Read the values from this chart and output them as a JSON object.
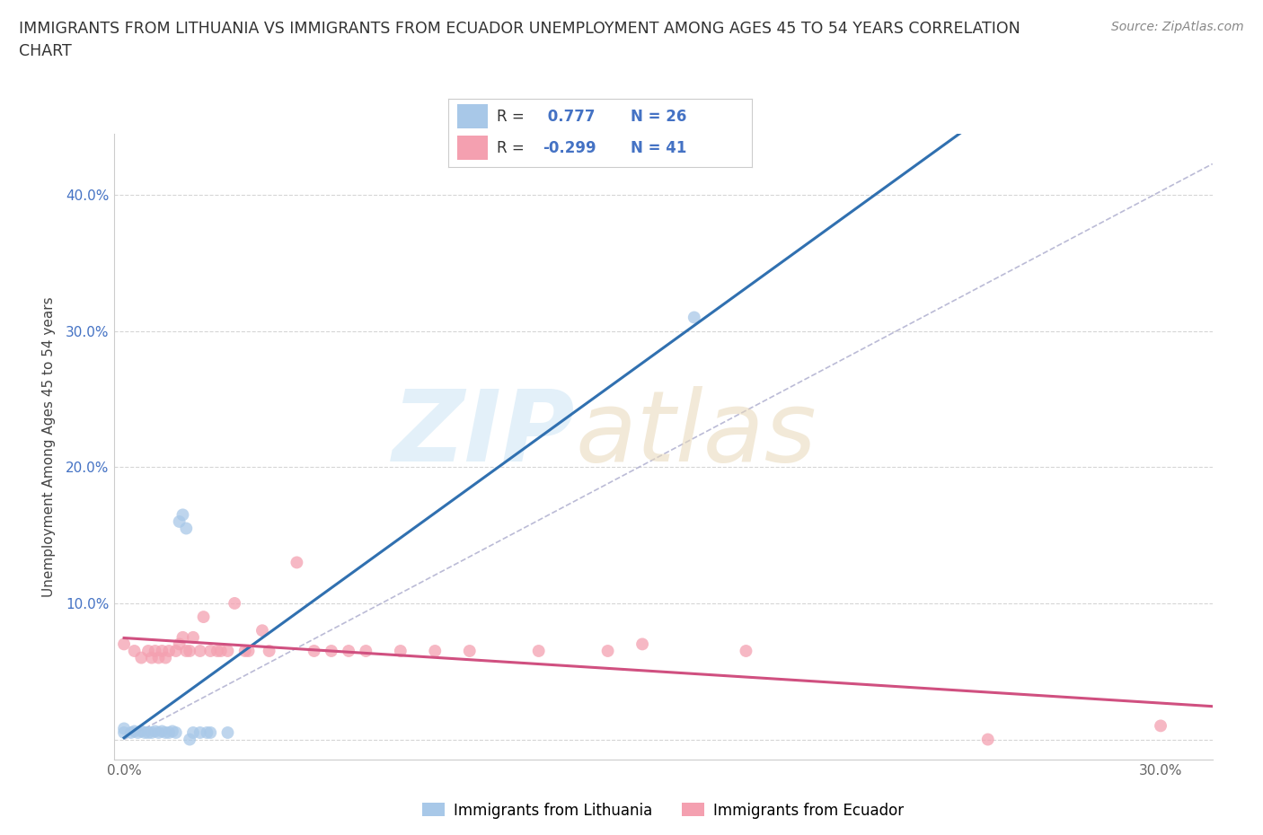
{
  "title_line1": "IMMIGRANTS FROM LITHUANIA VS IMMIGRANTS FROM ECUADOR UNEMPLOYMENT AMONG AGES 45 TO 54 YEARS CORRELATION",
  "title_line2": "CHART",
  "source": "Source: ZipAtlas.com",
  "ylabel": "Unemployment Among Ages 45 to 54 years",
  "xlim": [
    -0.003,
    0.315
  ],
  "ylim": [
    -0.015,
    0.445
  ],
  "xticks": [
    0.0,
    0.05,
    0.1,
    0.15,
    0.2,
    0.25,
    0.3
  ],
  "xticklabels": [
    "0.0%",
    "",
    "",
    "",
    "",
    "",
    "30.0%"
  ],
  "yticks": [
    0.0,
    0.1,
    0.2,
    0.3,
    0.4
  ],
  "yticklabels": [
    "",
    "10.0%",
    "20.0%",
    "30.0%",
    "40.0%"
  ],
  "R_lithuania": 0.777,
  "N_lithuania": 26,
  "R_ecuador": -0.299,
  "N_ecuador": 41,
  "color_lithuania": "#a8c8e8",
  "color_ecuador": "#f4a0b0",
  "trendline_color_lithuania": "#3070b0",
  "trendline_color_ecuador": "#d05080",
  "refline_color": "#aaaacc",
  "background_color": "#ffffff",
  "lithuania_x": [
    0.0,
    0.0,
    0.002,
    0.003,
    0.004,
    0.005,
    0.006,
    0.007,
    0.008,
    0.009,
    0.01,
    0.011,
    0.012,
    0.013,
    0.014,
    0.015,
    0.016,
    0.017,
    0.018,
    0.019,
    0.02,
    0.022,
    0.024,
    0.025,
    0.03,
    0.165
  ],
  "lithuania_y": [
    0.005,
    0.008,
    0.005,
    0.006,
    0.005,
    0.006,
    0.005,
    0.005,
    0.005,
    0.006,
    0.005,
    0.006,
    0.005,
    0.005,
    0.006,
    0.005,
    0.16,
    0.165,
    0.155,
    0.0,
    0.005,
    0.005,
    0.005,
    0.005,
    0.005,
    0.31
  ],
  "ecuador_x": [
    0.0,
    0.003,
    0.005,
    0.007,
    0.008,
    0.009,
    0.01,
    0.011,
    0.012,
    0.013,
    0.015,
    0.016,
    0.017,
    0.018,
    0.019,
    0.02,
    0.022,
    0.023,
    0.025,
    0.027,
    0.028,
    0.03,
    0.032,
    0.035,
    0.036,
    0.04,
    0.042,
    0.05,
    0.055,
    0.06,
    0.065,
    0.07,
    0.08,
    0.09,
    0.1,
    0.12,
    0.14,
    0.15,
    0.18,
    0.25,
    0.3
  ],
  "ecuador_y": [
    0.07,
    0.065,
    0.06,
    0.065,
    0.06,
    0.065,
    0.06,
    0.065,
    0.06,
    0.065,
    0.065,
    0.07,
    0.075,
    0.065,
    0.065,
    0.075,
    0.065,
    0.09,
    0.065,
    0.065,
    0.065,
    0.065,
    0.1,
    0.065,
    0.065,
    0.08,
    0.065,
    0.13,
    0.065,
    0.065,
    0.065,
    0.065,
    0.065,
    0.065,
    0.065,
    0.065,
    0.065,
    0.07,
    0.065,
    0.0,
    0.01
  ],
  "legend_R_color": "#4472c4",
  "legend_N_color": "#4472c4"
}
